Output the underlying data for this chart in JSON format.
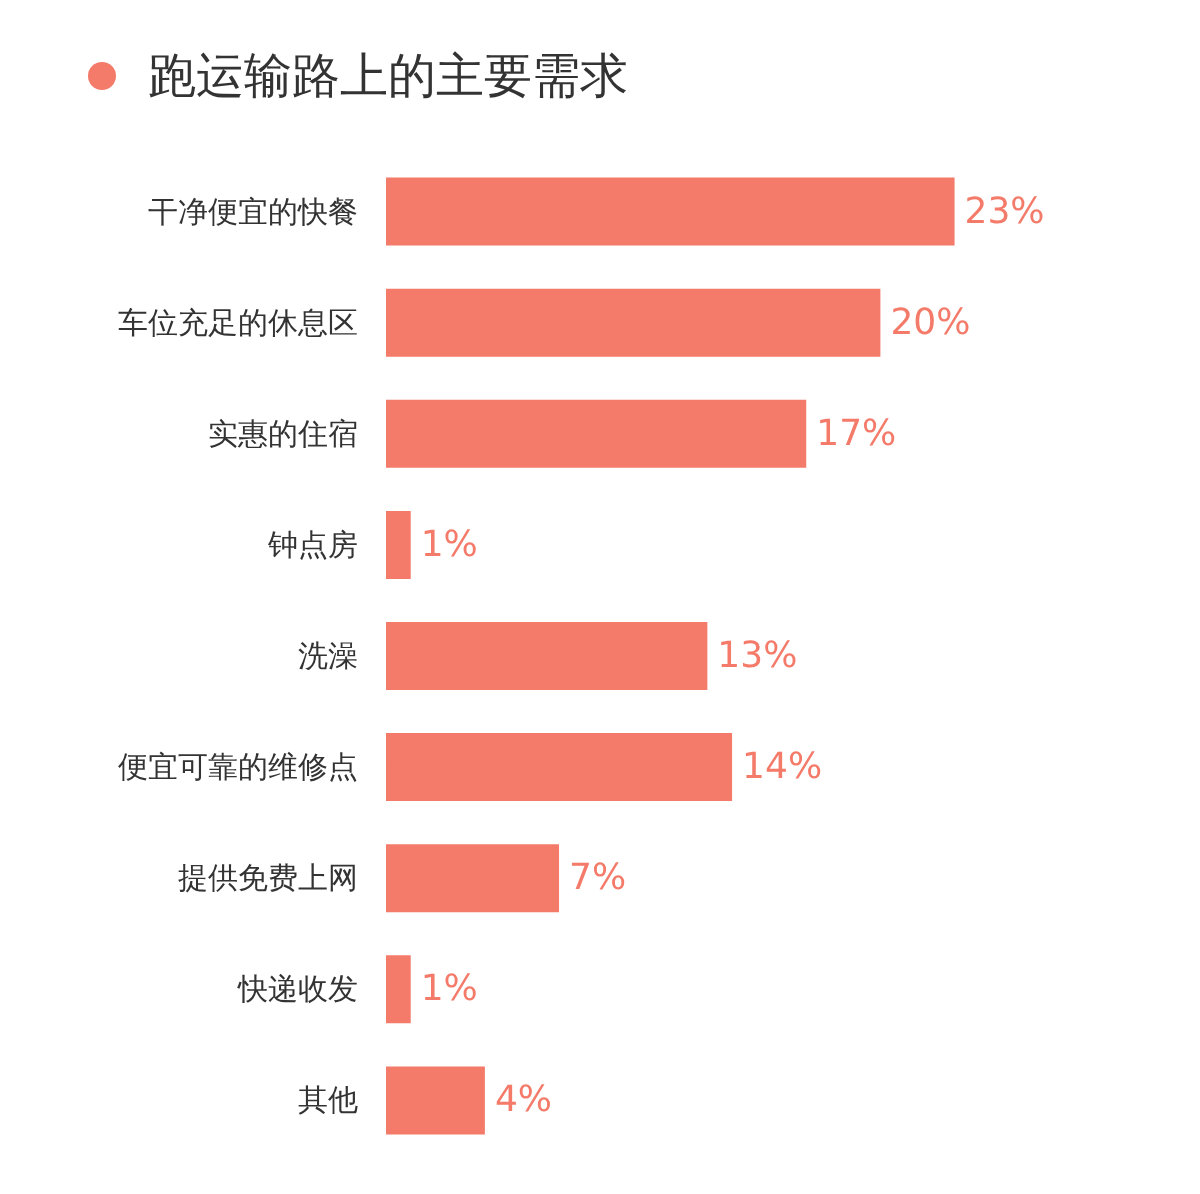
{
  "chart_data": {
    "type": "bar",
    "orientation": "horizontal",
    "title": "跑运输路上的主要需求",
    "categories": [
      "干净便宜的快餐",
      "车位充足的休息区",
      "实惠的住宿",
      "钟点房",
      "洗澡",
      "便宜可靠的维修点",
      "提供免费上网",
      "快递收发",
      "其他"
    ],
    "values": [
      23,
      20,
      17,
      1,
      13,
      14,
      7,
      1,
      4
    ],
    "value_labels": [
      "23%",
      "20%",
      "17%",
      "1%",
      "13%",
      "14%",
      "7%",
      "1%",
      "4%"
    ],
    "color": "#f47a69"
  }
}
